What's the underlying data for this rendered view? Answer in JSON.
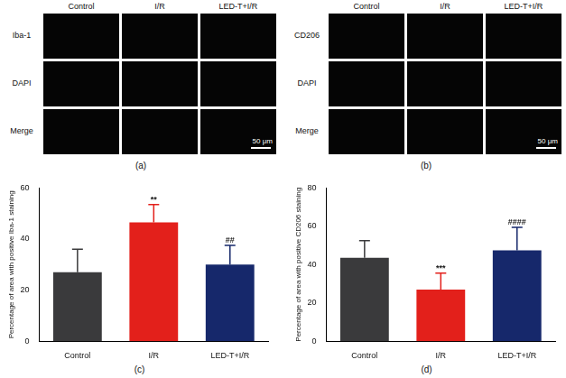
{
  "panels": [
    {
      "caption": "(a)",
      "columns": [
        "Control",
        "I/R",
        "LED-T+I/R"
      ],
      "rows": [
        "Iba-1",
        "DAPI",
        "Merge"
      ],
      "scale_bar": "50 μm"
    },
    {
      "caption": "(b)",
      "columns": [
        "Control",
        "I/R",
        "LED-T+I/R"
      ],
      "rows": [
        "CD206",
        "DAPI",
        "Merge"
      ],
      "scale_bar": "50 μm"
    }
  ],
  "chart_data": [
    {
      "type": "bar",
      "caption": "(c)",
      "ylabel": "Percentage of area with positive Iba-1 staining",
      "categories": [
        "Control",
        "I/R",
        "LED-T+I/R"
      ],
      "values": [
        27,
        46.5,
        30
      ],
      "errors": [
        9,
        7,
        7.5
      ],
      "annotations": [
        null,
        "**",
        "##"
      ],
      "colors": [
        "#3a3a3c",
        "#e3201b",
        "#16286b"
      ],
      "ylim": [
        0,
        60
      ],
      "yticks": [
        0,
        20,
        40,
        60
      ],
      "grid": false
    },
    {
      "type": "bar",
      "caption": "(d)",
      "ylabel": "Percentage of area with positive CD206 staining",
      "categories": [
        "Control",
        "I/R",
        "LED-T+I/R"
      ],
      "values": [
        43.5,
        27,
        47.5
      ],
      "errors": [
        9,
        8.5,
        12
      ],
      "annotations": [
        null,
        "***",
        "####"
      ],
      "colors": [
        "#3a3a3c",
        "#e3201b",
        "#16286b"
      ],
      "ylim": [
        0,
        80
      ],
      "yticks": [
        0,
        20,
        40,
        60,
        80
      ],
      "grid": false
    }
  ]
}
